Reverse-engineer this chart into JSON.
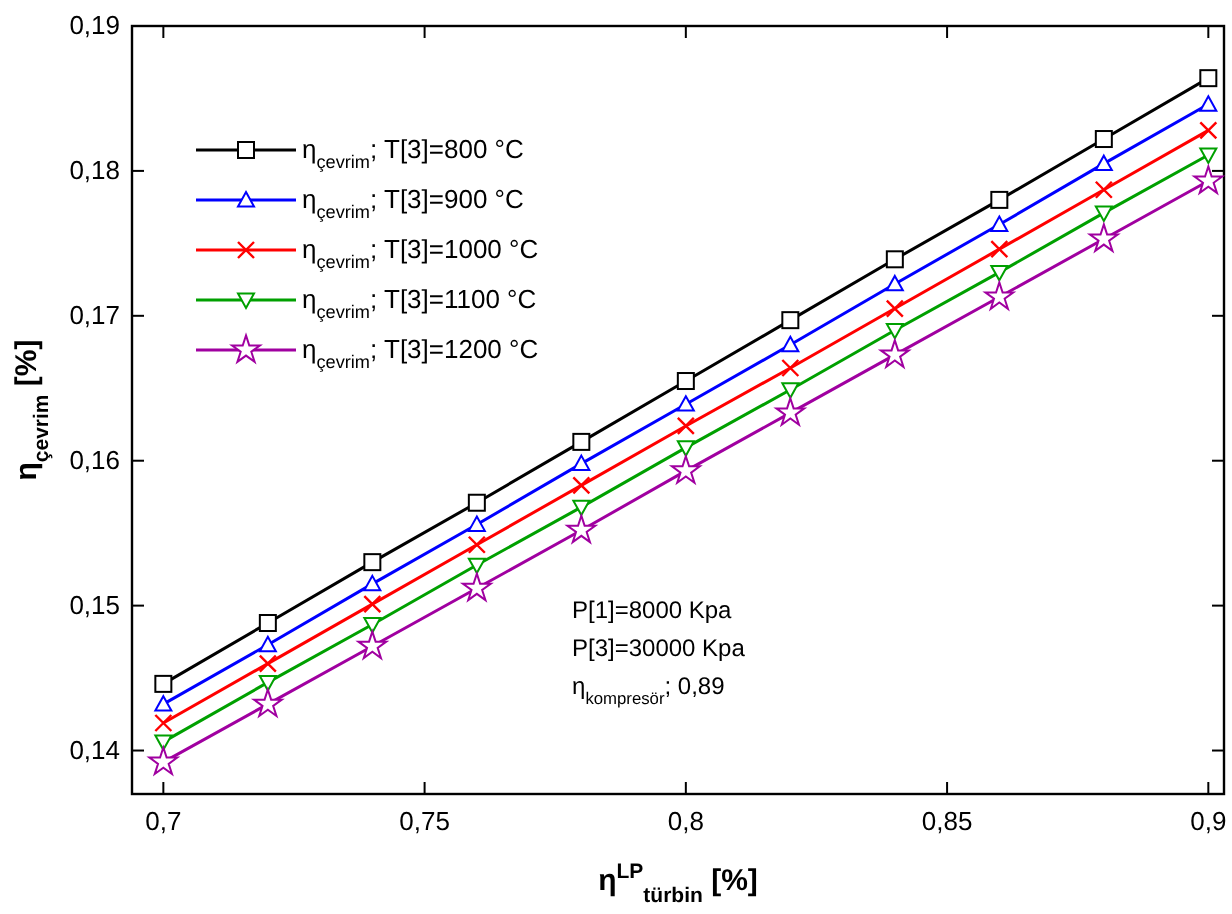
{
  "chart_data": {
    "type": "line",
    "xlabel": "η$^{LP}$$_{türbin}$  [%]",
    "ylabel": "η$_{çevrim}$ [%]",
    "x": [
      0.7,
      0.72,
      0.74,
      0.76,
      0.78,
      0.8,
      0.82,
      0.84,
      0.86,
      0.88,
      0.9
    ],
    "series": [
      {
        "name": "η$_{çevrim}$; T[3]=800 °C",
        "color": "#000000",
        "marker": "square",
        "values": [
          0.1446,
          0.1488,
          0.153,
          0.1571,
          0.1613,
          0.1655,
          0.1697,
          0.1739,
          0.178,
          0.1822,
          0.1864
        ]
      },
      {
        "name": "η$_{çevrim}$; T[3]=900 °C",
        "color": "#0000ff",
        "marker": "triangle",
        "values": [
          0.1432,
          0.1473,
          0.1515,
          0.1556,
          0.1598,
          0.1639,
          0.168,
          0.1722,
          0.1763,
          0.1805,
          0.1846
        ]
      },
      {
        "name": "η$_{çevrim}$; T[3]=1000 °C",
        "color": "#ff0000",
        "marker": "cross",
        "values": [
          0.1419,
          0.146,
          0.1501,
          0.1542,
          0.1583,
          0.1624,
          0.1664,
          0.1705,
          0.1746,
          0.1787,
          0.1828
        ]
      },
      {
        "name": "η$_{çevrim}$; T[3]=1100 °C",
        "color": "#00a000",
        "marker": "triangle-down",
        "values": [
          0.1406,
          0.1447,
          0.1487,
          0.1528,
          0.1568,
          0.1609,
          0.1649,
          0.169,
          0.173,
          0.1771,
          0.1811
        ]
      },
      {
        "name": "η$_{çevrim}$; T[3]=1200 °C",
        "color": "#a000a0",
        "marker": "star",
        "values": [
          0.1392,
          0.1432,
          0.1472,
          0.1512,
          0.1552,
          0.1593,
          0.1633,
          0.1673,
          0.1713,
          0.1753,
          0.1793
        ]
      }
    ],
    "xlim": [
      0.694,
      0.903
    ],
    "ylim": [
      0.137,
      0.19
    ],
    "xticks": [
      {
        "value": 0.7,
        "label": "0,7"
      },
      {
        "value": 0.75,
        "label": "0,75"
      },
      {
        "value": 0.8,
        "label": "0,8"
      },
      {
        "value": 0.85,
        "label": "0,85"
      },
      {
        "value": 0.9,
        "label": "0,9"
      }
    ],
    "yticks": [
      {
        "value": 0.14,
        "label": "0,14"
      },
      {
        "value": 0.15,
        "label": "0,15"
      },
      {
        "value": 0.16,
        "label": "0,16"
      },
      {
        "value": 0.17,
        "label": "0,17"
      },
      {
        "value": 0.18,
        "label": "0,18"
      },
      {
        "value": 0.19,
        "label": "0,19"
      }
    ],
    "legend": "top left",
    "grid": false,
    "line_style": "solid",
    "annotations": [
      "P[1]=8000 Kpa",
      "P[3]=30000 Kpa",
      "η$_{kompresör}$; 0,89"
    ]
  }
}
